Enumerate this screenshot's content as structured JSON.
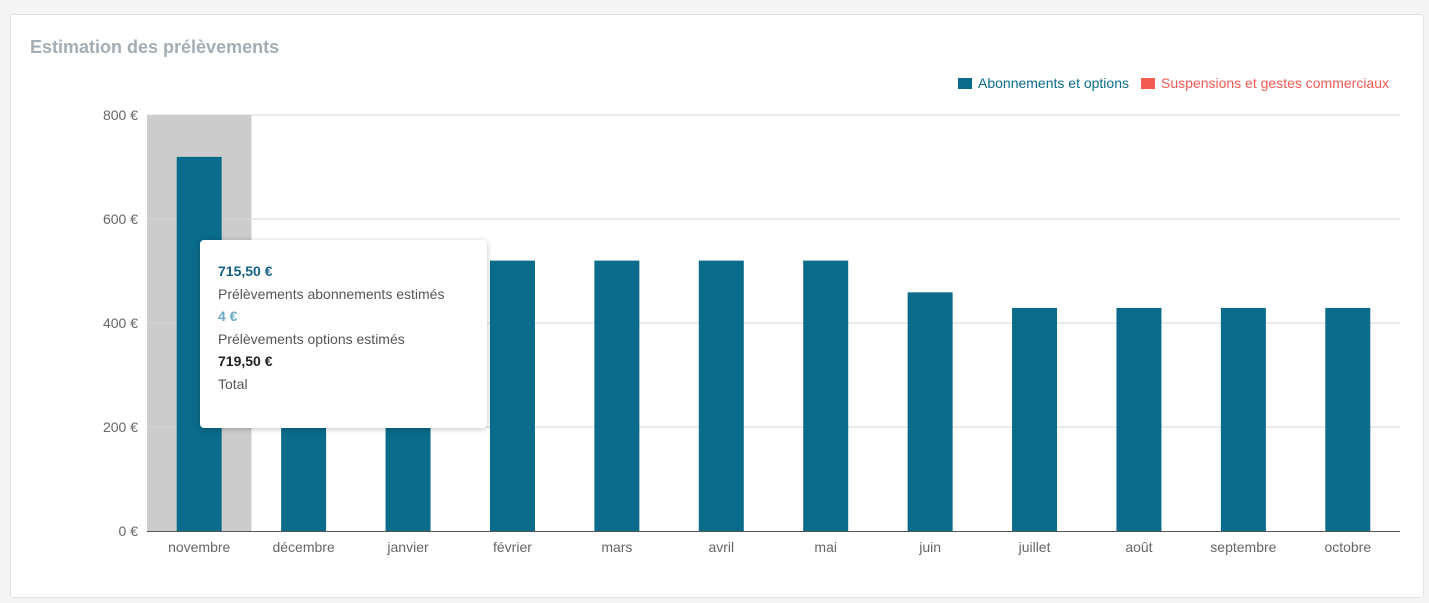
{
  "card": {
    "title": "Estimation des prélèvements"
  },
  "legend": [
    {
      "label": "Abonnements et options",
      "color": "#0a6b8a"
    },
    {
      "label": "Suspensions et gestes commerciaux",
      "color": "#f25a52"
    }
  ],
  "chart_data": {
    "type": "bar",
    "categories": [
      "novembre",
      "décembre",
      "janvier",
      "février",
      "mars",
      "avril",
      "mai",
      "juin",
      "juillet",
      "août",
      "septembre",
      "octobre"
    ],
    "series": [
      {
        "name": "Abonnements et options",
        "color": "#0a6b8a",
        "values": [
          719.5,
          520,
          520,
          520,
          520,
          520,
          520,
          459,
          429,
          429,
          429,
          429
        ]
      },
      {
        "name": "Suspensions et gestes commerciaux",
        "color": "#f25a52",
        "values": [
          0,
          0,
          0,
          0,
          0,
          0,
          0,
          0,
          0,
          0,
          0,
          0
        ]
      }
    ],
    "ylim": [
      0,
      800
    ],
    "yticks": [
      0,
      200,
      400,
      600,
      800
    ],
    "ytick_labels": [
      "0 €",
      "200 €",
      "400 €",
      "600 €",
      "800 €"
    ],
    "highlighted_category": "novembre",
    "grid": true,
    "legend_position": "top-right"
  },
  "tooltip": {
    "lines": [
      {
        "value": "715,50 €",
        "label": "Prélèvements abonnements estimés",
        "color": "#145f85"
      },
      {
        "value": "4 €",
        "label": "Prélèvements options estimés",
        "color": "#6aaac6"
      },
      {
        "value": "719,50 €",
        "label": "Total",
        "color": "#222222"
      }
    ]
  }
}
